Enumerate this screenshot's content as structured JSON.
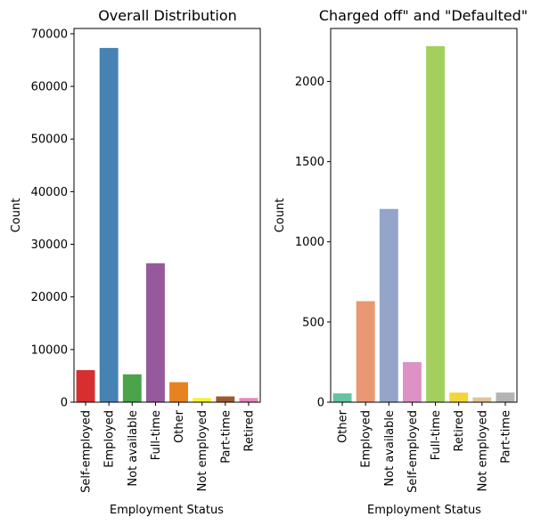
{
  "chart_data": [
    {
      "type": "bar",
      "title": "Overall Distribution",
      "xlabel": "Employment Status",
      "ylabel": "Count",
      "ylim": [
        0,
        71000
      ],
      "yticks": [
        0,
        10000,
        20000,
        30000,
        40000,
        50000,
        60000,
        70000
      ],
      "categories": [
        "Self-employed",
        "Employed",
        "Not available",
        "Full-time",
        "Other",
        "Not employed",
        "Part-time",
        "Retired"
      ],
      "values": [
        6100,
        67300,
        5300,
        26400,
        3800,
        800,
        1100,
        800
      ],
      "colors": [
        "#d62f2f",
        "#4682b4",
        "#4aa44a",
        "#965a9c",
        "#e68220",
        "#f6f12e",
        "#9c5a2c",
        "#e784bc"
      ],
      "grid": false
    },
    {
      "type": "bar",
      "title": "Charged off\" and \"Defaulted\"",
      "xlabel": "Employment Status",
      "ylabel": "Count",
      "ylim": [
        0,
        2330
      ],
      "yticks": [
        0,
        500,
        1000,
        1500,
        2000
      ],
      "categories": [
        "Other",
        "Employed",
        "Not available",
        "Self-employed",
        "Full-time",
        "Retired",
        "Not employed",
        "Part-time"
      ],
      "values": [
        55,
        630,
        1205,
        250,
        2220,
        60,
        30,
        60
      ],
      "colors": [
        "#66c2a5",
        "#eb9774",
        "#94a5c9",
        "#de91c4",
        "#a2cf5e",
        "#f3d43b",
        "#e3c495",
        "#b3b3b3"
      ],
      "grid": false
    }
  ]
}
